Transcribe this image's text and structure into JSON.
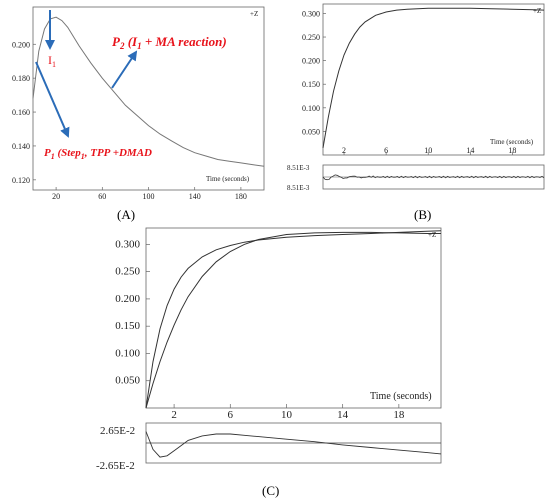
{
  "chart_data": [
    {
      "id": "A",
      "type": "line",
      "panel_label": "(A)",
      "corner_label": "+Z",
      "xlabel": "Time (seconds)",
      "xlim": [
        0,
        200
      ],
      "ylim": [
        0.114,
        0.222
      ],
      "xticks": [
        20,
        60,
        100,
        140,
        180
      ],
      "yticks": [
        0.12,
        0.14,
        0.16,
        0.18,
        0.2
      ],
      "ytick_labels": [
        "0.120",
        "0.140",
        "0.160",
        "0.180",
        "0.200"
      ],
      "series": [
        {
          "x": [
            0,
            5,
            10,
            15,
            20,
            25,
            30,
            40,
            50,
            60,
            70,
            80,
            90,
            100,
            110,
            120,
            130,
            140,
            150,
            160,
            170,
            180,
            190,
            200
          ],
          "values": [
            0.168,
            0.196,
            0.209,
            0.215,
            0.216,
            0.214,
            0.21,
            0.199,
            0.189,
            0.18,
            0.172,
            0.164,
            0.158,
            0.152,
            0.147,
            0.143,
            0.139,
            0.136,
            0.134,
            0.132,
            0.131,
            0.13,
            0.129,
            0.128
          ]
        }
      ],
      "annotations": {
        "i1": "I",
        "i1_sub": "1",
        "p2": "P",
        "p2_sub": "2",
        "p2_paren_open": " (I",
        "p2_paren_sub": "1",
        "p2_rest": " + MA reaction)",
        "p1": "P",
        "p1_sub": "1",
        "p1_step_open": " (Step",
        "p1_step_sub": "1",
        "p1_rest": ", TPP +DMAD"
      }
    },
    {
      "id": "B",
      "type": "line",
      "panel_label": "(B)",
      "corner_label": "+Z",
      "xlabel": "Time (seconds)",
      "xlim": [
        0,
        21
      ],
      "ylim": [
        0,
        0.32
      ],
      "xticks": [
        2,
        6,
        10,
        14,
        18
      ],
      "yticks": [
        0.05,
        0.1,
        0.15,
        0.2,
        0.25,
        0.3
      ],
      "ytick_labels": [
        "0.050",
        "0.100",
        "0.150",
        "0.200",
        "0.250",
        "0.300"
      ],
      "series": [
        {
          "x": [
            0,
            0.5,
            1,
            1.5,
            2,
            2.5,
            3,
            3.5,
            4,
            5,
            6,
            7,
            8,
            10,
            12,
            14,
            16,
            18,
            20,
            21
          ],
          "values": [
            0.015,
            0.08,
            0.135,
            0.178,
            0.212,
            0.237,
            0.256,
            0.271,
            0.282,
            0.296,
            0.303,
            0.307,
            0.309,
            0.311,
            0.311,
            0.311,
            0.31,
            0.309,
            0.308,
            0.307
          ]
        }
      ],
      "residual": {
        "labels": [
          "8.51E-3",
          "8.51E-3"
        ]
      }
    },
    {
      "id": "C",
      "type": "line",
      "panel_label": "(C)",
      "corner_label": "+Z",
      "xlabel": "Time (seconds)",
      "xlim": [
        0,
        21
      ],
      "ylim": [
        0,
        0.33
      ],
      "xticks": [
        2,
        6,
        10,
        14,
        18
      ],
      "yticks": [
        0.05,
        0.1,
        0.15,
        0.2,
        0.25,
        0.3
      ],
      "ytick_labels": [
        "0.050",
        "0.100",
        "0.150",
        "0.200",
        "0.250",
        "0.300"
      ],
      "series": [
        {
          "x": [
            0,
            0.5,
            1,
            1.5,
            2,
            2.5,
            3,
            4,
            5,
            6,
            7,
            8,
            10,
            12,
            14,
            16,
            18,
            20,
            21
          ],
          "values": [
            0.0,
            0.085,
            0.145,
            0.188,
            0.218,
            0.24,
            0.256,
            0.277,
            0.29,
            0.298,
            0.304,
            0.308,
            0.313,
            0.316,
            0.318,
            0.32,
            0.322,
            0.324,
            0.325
          ]
        },
        {
          "x": [
            0,
            0.5,
            1,
            1.5,
            2,
            2.5,
            3,
            4,
            5,
            6,
            7,
            8,
            10,
            12,
            14,
            16,
            18,
            20,
            21
          ],
          "values": [
            0.0,
            0.045,
            0.085,
            0.121,
            0.152,
            0.18,
            0.204,
            0.241,
            0.268,
            0.287,
            0.3,
            0.309,
            0.318,
            0.321,
            0.322,
            0.322,
            0.321,
            0.32,
            0.32
          ]
        }
      ],
      "residual": {
        "labels": [
          "2.65E-2",
          "-2.65E-2"
        ],
        "x": [
          0,
          0.5,
          1,
          1.5,
          2,
          2.5,
          3,
          4,
          5,
          6,
          7,
          8,
          10,
          12,
          14,
          16,
          18,
          20,
          21
        ],
        "values": [
          0.018,
          -0.01,
          -0.022,
          -0.02,
          -0.012,
          -0.004,
          0.004,
          0.011,
          0.014,
          0.014,
          0.012,
          0.01,
          0.006,
          0.002,
          -0.003,
          -0.007,
          -0.011,
          -0.015,
          -0.017
        ]
      }
    }
  ]
}
